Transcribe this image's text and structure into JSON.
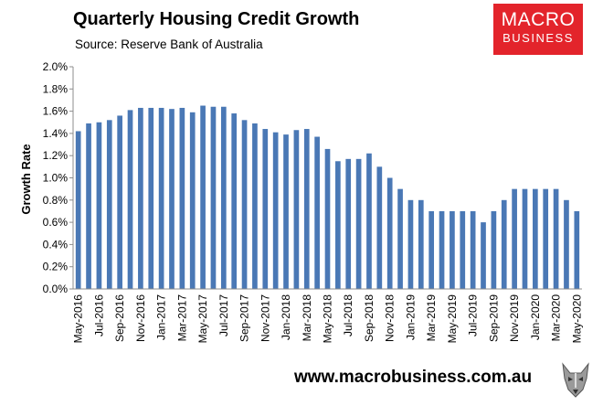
{
  "header": {
    "title": "Quarterly Housing Credit Growth",
    "subtitle": "Source: Reserve Bank of Australia"
  },
  "logo": {
    "line1": "MACRO",
    "line2": "BUSINESS",
    "color": "#e3242b"
  },
  "footer": {
    "url": "www.macrobusiness.com.au",
    "icon": "wolf-icon"
  },
  "chart_data": {
    "type": "bar",
    "ylabel": "Growth Rate",
    "xlabel": "",
    "ylim": [
      0,
      2.0
    ],
    "yticks": [
      "0.0%",
      "0.2%",
      "0.4%",
      "0.6%",
      "0.8%",
      "1.0%",
      "1.2%",
      "1.4%",
      "1.6%",
      "1.8%",
      "2.0%"
    ],
    "grid": false,
    "bar_color": "#4a78b5",
    "x_tick_labels": [
      "May-2016",
      "Jul-2016",
      "Sep-2016",
      "Nov-2016",
      "Jan-2017",
      "Mar-2017",
      "May-2017",
      "Jul-2017",
      "Sep-2017",
      "Nov-2017",
      "Jan-2018",
      "Mar-2018",
      "May-2018",
      "Jul-2018",
      "Sep-2018",
      "Nov-2018",
      "Jan-2019",
      "Mar-2019",
      "May-2019",
      "Jul-2019",
      "Sep-2019",
      "Nov-2019",
      "Jan-2020",
      "Mar-2020",
      "May-2020"
    ],
    "values": [
      1.42,
      1.49,
      1.5,
      1.52,
      1.56,
      1.61,
      1.63,
      1.63,
      1.63,
      1.62,
      1.63,
      1.59,
      1.65,
      1.64,
      1.64,
      1.58,
      1.52,
      1.49,
      1.44,
      1.41,
      1.39,
      1.43,
      1.44,
      1.37,
      1.26,
      1.15,
      1.17,
      1.17,
      1.22,
      1.1,
      1.0,
      0.9,
      0.8,
      0.8,
      0.7,
      0.7,
      0.7,
      0.7,
      0.7,
      0.6,
      0.7,
      0.8,
      0.9,
      0.9,
      0.9,
      0.9,
      0.9,
      0.8,
      0.7
    ]
  }
}
